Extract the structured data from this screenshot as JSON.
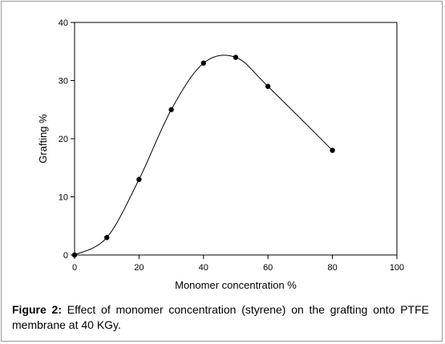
{
  "chart_data": {
    "type": "line",
    "xlabel": "Monomer concentration %",
    "ylabel": "Grafting %",
    "xlim": [
      0,
      100
    ],
    "ylim": [
      0,
      40
    ],
    "x_ticks": [
      0,
      20,
      40,
      60,
      80,
      100
    ],
    "y_ticks": [
      0,
      10,
      20,
      30,
      40
    ],
    "grid": false,
    "series": [
      {
        "x": [
          0,
          10,
          20,
          30,
          40,
          50,
          60,
          80
        ],
        "values": [
          0,
          3,
          13,
          25,
          33,
          34,
          29,
          18
        ],
        "marker": "filled-circle",
        "line": "smooth",
        "color": "#000000"
      }
    ]
  },
  "caption": {
    "label": "Figure 2:",
    "text": " Effect of monomer concentration (styrene) on the grafting onto PTFE membrane at 40 KGy."
  }
}
